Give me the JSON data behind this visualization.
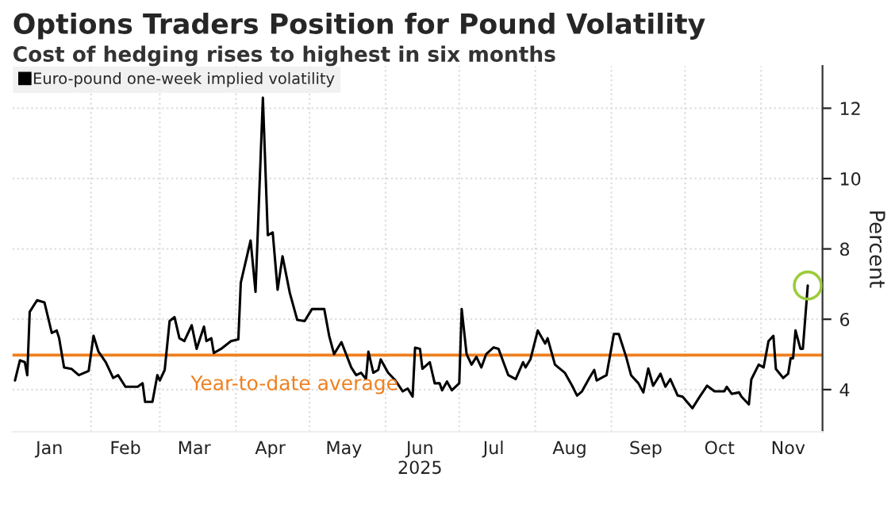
{
  "chart_data": {
    "type": "line",
    "title": "Options Traders Position for Pound Volatility",
    "subtitle": "Cost of hedging rises to highest in six months",
    "ylabel": "Percent",
    "x": [
      "2025-01-01",
      "2025-01-03",
      "2025-01-05",
      "2025-01-06",
      "2025-01-07",
      "2025-01-10",
      "2025-01-13",
      "2025-01-16",
      "2025-01-18",
      "2025-01-19",
      "2025-01-21",
      "2025-01-24",
      "2025-01-27",
      "2025-01-31",
      "2025-02-02",
      "2025-02-04",
      "2025-02-07",
      "2025-02-10",
      "2025-02-12",
      "2025-02-15",
      "2025-02-20",
      "2025-02-22",
      "2025-02-23",
      "2025-02-26",
      "2025-02-28",
      "2025-03-01",
      "2025-03-03",
      "2025-03-05",
      "2025-03-07",
      "2025-03-09",
      "2025-03-11",
      "2025-03-14",
      "2025-03-16",
      "2025-03-19",
      "2025-03-20",
      "2025-03-22",
      "2025-03-23",
      "2025-03-26",
      "2025-03-30",
      "2025-04-02",
      "2025-04-03",
      "2025-04-07",
      "2025-04-09",
      "2025-04-12",
      "2025-04-14",
      "2025-04-16",
      "2025-04-18",
      "2025-04-20",
      "2025-04-23",
      "2025-04-26",
      "2025-04-29",
      "2025-05-02",
      "2025-05-07",
      "2025-05-09",
      "2025-05-11",
      "2025-05-14",
      "2025-05-18",
      "2025-05-20",
      "2025-05-22",
      "2025-05-24",
      "2025-05-25",
      "2025-05-27",
      "2025-05-29",
      "2025-05-30",
      "2025-06-02",
      "2025-06-05",
      "2025-06-08",
      "2025-06-10",
      "2025-06-12",
      "2025-06-13",
      "2025-06-15",
      "2025-06-16",
      "2025-06-19",
      "2025-06-21",
      "2025-06-23",
      "2025-06-24",
      "2025-06-26",
      "2025-06-28",
      "2025-07-01",
      "2025-07-02",
      "2025-07-04",
      "2025-07-06",
      "2025-07-08",
      "2025-07-10",
      "2025-07-12",
      "2025-07-15",
      "2025-07-17",
      "2025-07-19",
      "2025-07-21",
      "2025-07-24",
      "2025-07-27",
      "2025-07-28",
      "2025-07-30",
      "2025-08-02",
      "2025-08-05",
      "2025-08-06",
      "2025-08-09",
      "2025-08-13",
      "2025-08-16",
      "2025-08-18",
      "2025-08-20",
      "2025-08-23",
      "2025-08-25",
      "2025-08-26",
      "2025-08-30",
      "2025-09-02",
      "2025-09-04",
      "2025-09-07",
      "2025-09-09",
      "2025-09-12",
      "2025-09-14",
      "2025-09-16",
      "2025-09-18",
      "2025-09-21",
      "2025-09-23",
      "2025-09-25",
      "2025-09-28",
      "2025-09-30",
      "2025-10-04",
      "2025-10-07",
      "2025-10-10",
      "2025-10-13",
      "2025-10-17",
      "2025-10-18",
      "2025-10-20",
      "2025-10-23",
      "2025-10-24",
      "2025-10-27",
      "2025-10-28",
      "2025-10-31",
      "2025-11-02",
      "2025-11-04",
      "2025-11-06",
      "2025-11-07",
      "2025-11-10",
      "2025-11-12",
      "2025-11-13",
      "2025-11-14",
      "2025-11-15",
      "2025-11-17",
      "2025-11-18",
      "2025-11-20"
    ],
    "series": [
      {
        "name": "Euro-pound one-week implied volatility",
        "color": "#000000",
        "values": [
          4.26,
          4.83,
          4.78,
          4.41,
          6.21,
          6.54,
          6.48,
          5.61,
          5.68,
          5.46,
          4.63,
          4.59,
          4.41,
          4.53,
          5.53,
          5.08,
          4.78,
          4.33,
          4.41,
          4.08,
          4.08,
          4.18,
          3.65,
          3.65,
          4.41,
          4.26,
          4.56,
          5.95,
          6.06,
          5.46,
          5.38,
          5.83,
          5.16,
          5.79,
          5.38,
          5.46,
          5.04,
          5.16,
          5.38,
          5.43,
          7.04,
          8.24,
          6.78,
          12.3,
          8.39,
          8.47,
          6.84,
          7.79,
          6.74,
          5.98,
          5.95,
          6.29,
          6.29,
          5.53,
          5.01,
          5.35,
          4.63,
          4.41,
          4.48,
          4.3,
          5.08,
          4.48,
          4.56,
          4.86,
          4.48,
          4.26,
          3.95,
          4.03,
          3.8,
          5.19,
          5.16,
          4.59,
          4.78,
          4.18,
          4.18,
          3.98,
          4.23,
          3.98,
          4.18,
          6.29,
          5.01,
          4.71,
          4.93,
          4.63,
          5.01,
          5.2,
          5.16,
          4.78,
          4.41,
          4.3,
          4.78,
          4.63,
          4.86,
          5.68,
          5.31,
          5.46,
          4.71,
          4.48,
          4.11,
          3.83,
          3.95,
          4.33,
          4.56,
          4.26,
          4.41,
          5.58,
          5.58,
          4.93,
          4.41,
          4.18,
          3.92,
          4.6,
          4.11,
          4.45,
          4.08,
          4.3,
          3.83,
          3.8,
          3.47,
          3.8,
          4.11,
          3.95,
          3.95,
          4.08,
          3.88,
          3.92,
          3.8,
          3.58,
          4.29,
          4.71,
          4.63,
          5.38,
          5.53,
          4.59,
          4.33,
          4.45,
          4.89,
          4.89,
          5.68,
          5.16,
          5.16,
          6.96
        ]
      },
      {
        "type": "scatter",
        "color": "#9ccc3c",
        "marker": "circle",
        "x": [
          "2025-11-20"
        ],
        "values": [
          6.96
        ]
      }
    ],
    "xlim": [
      "2024-12-31",
      "2025-11-26"
    ],
    "xticks": [
      {
        "value": "2025-02-01",
        "label": null
      },
      {
        "value": "2025-03-01",
        "label": null
      },
      {
        "value": "2025-04-01",
        "label": null
      },
      {
        "value": "2025-05-01",
        "label": null
      },
      {
        "value": "2025-06-01",
        "label": null
      },
      {
        "value": "2025-07-01",
        "label": null
      },
      {
        "value": "2025-08-01",
        "label": null
      },
      {
        "value": "2025-09-01",
        "label": null
      },
      {
        "value": "2025-10-01",
        "label": null
      },
      {
        "value": "2025-11-01",
        "label": null
      },
      {
        "value": "2025-01-15",
        "label": "Jan"
      },
      {
        "value": "2025-02-15",
        "label": "Feb"
      },
      {
        "value": "2025-03-15",
        "label": "Mar"
      },
      {
        "value": "2025-04-15",
        "label": "Apr"
      },
      {
        "value": "2025-05-15",
        "label": "May"
      },
      {
        "value": "2025-06-15",
        "label": "Jun\n2025"
      },
      {
        "value": "2025-07-15",
        "label": "Jul"
      },
      {
        "value": "2025-08-15",
        "label": "Aug"
      },
      {
        "value": "2025-09-15",
        "label": "Sep"
      },
      {
        "value": "2025-10-15",
        "label": "Oct"
      },
      {
        "value": "2025-11-12",
        "label": "Nov"
      }
    ],
    "ylim": [
      2.8,
      13.2
    ],
    "yticks": [
      4,
      6,
      8,
      10,
      12
    ],
    "ref_lines": [
      {
        "axis": "y",
        "value": 4.98,
        "label": "Year-to-date average",
        "color": "#f07f1e"
      }
    ],
    "grid": true,
    "legend": "top left"
  }
}
